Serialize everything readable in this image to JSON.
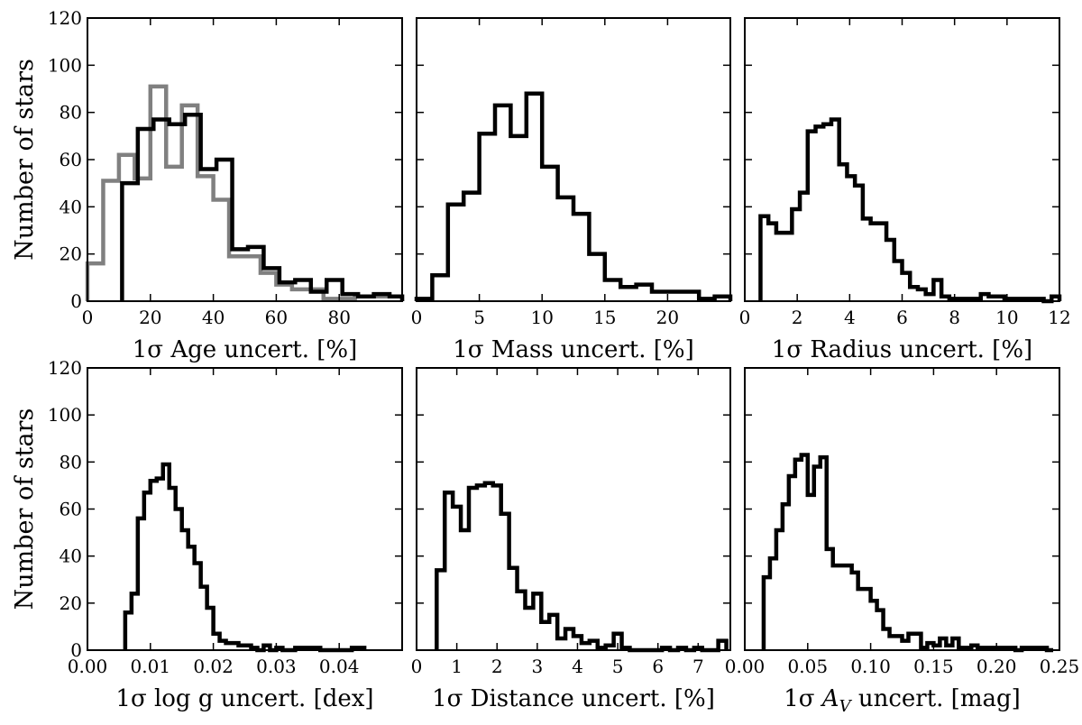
{
  "chart_data": [
    {
      "type": "histogram",
      "xlabel": "1σ Age uncert. [%]",
      "ylabel": "Number of stars",
      "xlim": [
        0,
        100
      ],
      "ylim": [
        0,
        120
      ],
      "xticks": [
        0,
        20,
        40,
        60,
        80
      ],
      "xtick_labels": [
        "0",
        "20",
        "40",
        "60",
        "80"
      ],
      "yticks": [
        0,
        20,
        40,
        60,
        80,
        100,
        120
      ],
      "ytick_labels": [
        "0",
        "20",
        "40",
        "60",
        "80",
        "100",
        "120"
      ],
      "grid": false,
      "series": [
        {
          "color": "#808080",
          "edges": [
            0,
            5,
            10,
            15,
            20,
            25,
            30,
            35,
            40,
            45,
            50,
            55,
            60,
            65,
            70,
            75,
            80,
            85,
            90,
            95,
            100
          ],
          "values": [
            16,
            51,
            62,
            52,
            91,
            57,
            83,
            53,
            43,
            19,
            19,
            12,
            7,
            5,
            5,
            1,
            1,
            2,
            2,
            2
          ]
        },
        {
          "color": "#000000",
          "edges": [
            11,
            16,
            21,
            26,
            31,
            36,
            41,
            46,
            51,
            56,
            61,
            66,
            71,
            76,
            81,
            86,
            91,
            96,
            100
          ],
          "values": [
            50,
            73,
            77,
            75,
            79,
            56,
            60,
            22,
            23,
            14,
            8,
            9,
            4,
            9,
            3,
            2,
            3,
            2
          ]
        }
      ]
    },
    {
      "type": "histogram",
      "xlabel": "1σ Mass uncert. [%]",
      "xlim": [
        0,
        25
      ],
      "ylim": [
        0,
        120
      ],
      "xticks": [
        0,
        5,
        10,
        15,
        20
      ],
      "xtick_labels": [
        "0",
        "5",
        "10",
        "15",
        "20"
      ],
      "grid": false,
      "series": [
        {
          "color": "#000000",
          "edges": [
            0,
            1.25,
            2.5,
            3.75,
            5,
            6.25,
            7.5,
            8.75,
            10,
            11.25,
            12.5,
            13.75,
            15,
            16.25,
            17.5,
            18.75,
            20,
            21.25,
            22.5,
            23.75,
            25
          ],
          "values": [
            1,
            11,
            41,
            46,
            71,
            83,
            70,
            88,
            57,
            44,
            37,
            20,
            9,
            6,
            7,
            4,
            4,
            4,
            1,
            2
          ]
        }
      ]
    },
    {
      "type": "histogram",
      "xlabel": "1σ Radius uncert. [%]",
      "xlim": [
        0,
        12
      ],
      "ylim": [
        0,
        120
      ],
      "xticks": [
        0,
        2,
        4,
        6,
        8,
        10,
        12
      ],
      "xtick_labels": [
        "0",
        "2",
        "4",
        "6",
        "8",
        "10",
        "12"
      ],
      "grid": false,
      "series": [
        {
          "color": "#000000",
          "edges": [
            0.6,
            0.9,
            1.2,
            1.5,
            1.8,
            2.1,
            2.4,
            2.7,
            3.0,
            3.3,
            3.6,
            3.9,
            4.2,
            4.5,
            4.8,
            5.1,
            5.4,
            5.7,
            6.0,
            6.3,
            6.6,
            6.9,
            7.2,
            7.5,
            7.8,
            8.1,
            8.4,
            8.7,
            9.0,
            9.3,
            9.6,
            9.9,
            10.2,
            10.5,
            10.8,
            11.1,
            11.4,
            11.7,
            12.0
          ],
          "values": [
            36,
            33,
            29,
            29,
            39,
            46,
            72,
            74,
            75,
            77,
            58,
            53,
            49,
            35,
            33,
            33,
            26,
            17,
            12,
            6,
            5,
            3,
            9,
            2,
            1,
            1,
            1,
            1,
            3,
            2,
            2,
            1,
            1,
            1,
            1,
            1,
            0,
            2
          ]
        }
      ]
    },
    {
      "type": "histogram",
      "xlabel": "1σ log g uncert. [dex]",
      "ylabel": "Number of stars",
      "xlim": [
        0,
        0.05
      ],
      "ylim": [
        0,
        120
      ],
      "xticks": [
        0.0,
        0.01,
        0.02,
        0.03,
        0.04
      ],
      "xtick_labels": [
        "0.00",
        "0.01",
        "0.02",
        "0.03",
        "0.04"
      ],
      "yticks": [
        0,
        20,
        40,
        60,
        80,
        100,
        120
      ],
      "ytick_labels": [
        "0",
        "20",
        "40",
        "60",
        "80",
        "100",
        "120"
      ],
      "grid": false,
      "series": [
        {
          "color": "#000000",
          "edges": [
            0.006,
            0.007,
            0.008,
            0.009,
            0.01,
            0.011,
            0.012,
            0.013,
            0.014,
            0.015,
            0.016,
            0.017,
            0.018,
            0.019,
            0.02,
            0.021,
            0.022,
            0.023,
            0.024,
            0.025,
            0.026,
            0.027,
            0.028,
            0.029,
            0.03,
            0.031,
            0.032,
            0.033,
            0.034,
            0.035,
            0.036,
            0.037,
            0.038,
            0.039,
            0.04,
            0.041,
            0.042,
            0.043,
            0.044
          ],
          "values": [
            16,
            24,
            56,
            67,
            72,
            73,
            79,
            69,
            60,
            51,
            44,
            37,
            27,
            18,
            7,
            4,
            3,
            3,
            2,
            2,
            1,
            0,
            2,
            0,
            1,
            0,
            0,
            1,
            1,
            1,
            1,
            0,
            0,
            0,
            0,
            0,
            1,
            1
          ]
        }
      ]
    },
    {
      "type": "histogram",
      "xlabel": "1σ Distance uncert. [%]",
      "xlim": [
        0,
        7.8
      ],
      "ylim": [
        0,
        120
      ],
      "xticks": [
        0,
        1,
        2,
        3,
        4,
        5,
        6,
        7
      ],
      "xtick_labels": [
        "0",
        "1",
        "2",
        "3",
        "4",
        "5",
        "6",
        "7"
      ],
      "grid": false,
      "series": [
        {
          "color": "#000000",
          "edges": [
            0.5,
            0.7,
            0.9,
            1.1,
            1.3,
            1.5,
            1.7,
            1.9,
            2.1,
            2.3,
            2.5,
            2.7,
            2.9,
            3.1,
            3.3,
            3.5,
            3.7,
            3.9,
            4.1,
            4.3,
            4.5,
            4.7,
            4.9,
            5.1,
            5.3,
            5.5,
            5.7,
            5.9,
            6.1,
            6.3,
            6.5,
            6.7,
            6.9,
            7.1,
            7.3,
            7.5,
            7.7
          ],
          "values": [
            34,
            67,
            61,
            51,
            69,
            70,
            71,
            70,
            58,
            35,
            25,
            18,
            24,
            12,
            15,
            5,
            9,
            6,
            3,
            4,
            1,
            2,
            7,
            1,
            0,
            0,
            0,
            0,
            1,
            0,
            1,
            0,
            1,
            0,
            0,
            4
          ]
        }
      ]
    },
    {
      "type": "histogram",
      "xlabel": "1σ A_V uncert. [mag]",
      "xlim": [
        0,
        0.25
      ],
      "ylim": [
        0,
        120
      ],
      "xticks": [
        0.0,
        0.05,
        0.1,
        0.15,
        0.2,
        0.25
      ],
      "xtick_labels": [
        "0.00",
        "0.05",
        "0.10",
        "0.15",
        "0.20",
        "0.25"
      ],
      "grid": false,
      "series": [
        {
          "color": "#000000",
          "edges": [
            0.015,
            0.02,
            0.025,
            0.03,
            0.035,
            0.04,
            0.045,
            0.05,
            0.055,
            0.06,
            0.065,
            0.07,
            0.075,
            0.08,
            0.085,
            0.09,
            0.095,
            0.1,
            0.105,
            0.11,
            0.115,
            0.12,
            0.125,
            0.13,
            0.135,
            0.14,
            0.145,
            0.15,
            0.155,
            0.16,
            0.165,
            0.17,
            0.175,
            0.18,
            0.185,
            0.19,
            0.195,
            0.2,
            0.205,
            0.21,
            0.215,
            0.22,
            0.225,
            0.23,
            0.235,
            0.24,
            0.245
          ],
          "values": [
            31,
            39,
            51,
            62,
            74,
            81,
            83,
            66,
            78,
            82,
            43,
            36,
            36,
            36,
            33,
            26,
            26,
            21,
            17,
            9,
            6,
            6,
            4,
            7,
            7,
            1,
            3,
            2,
            5,
            2,
            5,
            1,
            1,
            2,
            1,
            1,
            1,
            1,
            1,
            1,
            0,
            1,
            1,
            1,
            1,
            0
          ]
        }
      ]
    }
  ]
}
